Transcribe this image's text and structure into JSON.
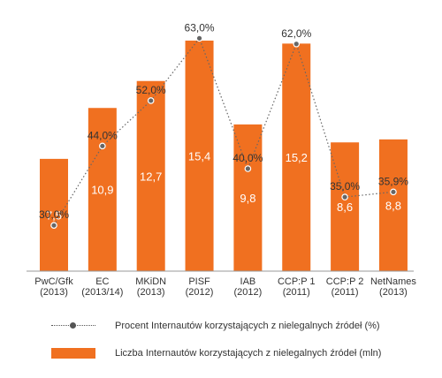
{
  "chart_data": {
    "type": "bar",
    "categories": [
      [
        "PwC/Gfk",
        "(2013)"
      ],
      [
        "EC",
        "(2013/14)"
      ],
      [
        "MKiDN",
        "(2013)"
      ],
      [
        "PISF",
        "(2012)"
      ],
      [
        "IAB",
        "(2012)"
      ],
      [
        "CCP:P 1",
        "(2011)"
      ],
      [
        "CCP:P 2",
        "(2011)"
      ],
      [
        "NetNames",
        "(2013)"
      ]
    ],
    "series": [
      {
        "name": "Liczba Internautów korzystających z nielegalnych źródeł (mln)",
        "type": "bar",
        "values": [
          7.5,
          10.9,
          12.7,
          15.4,
          9.8,
          15.2,
          8.6,
          8.8
        ],
        "labels": [
          "7,5",
          "10,9",
          "12,7",
          "15,4",
          "9,8",
          "15,2",
          "8,6",
          "8,8"
        ],
        "color": "#f07020"
      },
      {
        "name": "Procent Internautów korzystających z nielegalnych źródeł (%)",
        "type": "line",
        "values": [
          30.0,
          44.0,
          52.0,
          63.0,
          40.0,
          62.0,
          35.0,
          35.9
        ],
        "labels": [
          "30,0%",
          "44,0%",
          "52,0%",
          "63,0%",
          "40,0%",
          "62,0%",
          "35,0%",
          "35,9%"
        ],
        "color": "#666666"
      }
    ],
    "grid": false,
    "legend_position": "bottom"
  }
}
